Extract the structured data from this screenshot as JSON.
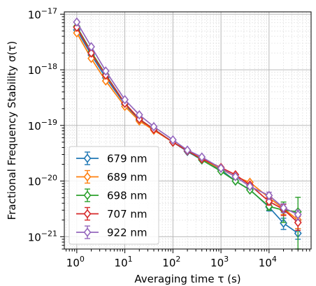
{
  "chart_data": {
    "type": "line",
    "xlabel": "Averaging time τ (s)",
    "ylabel": "Fractional Frequency Stability σ(τ)",
    "xscale": "log",
    "yscale": "log",
    "xlim": [
      0.55,
      75000
    ],
    "ylim": [
      6e-22,
      1.1e-17
    ],
    "grid": true,
    "legend_position": "lower-left",
    "marker": "open-diamond",
    "x_ticks": [
      {
        "value": 1,
        "base": "10",
        "exp": "0"
      },
      {
        "value": 10,
        "base": "10",
        "exp": "1"
      },
      {
        "value": 100,
        "base": "10",
        "exp": "2"
      },
      {
        "value": 1000,
        "base": "10",
        "exp": "3"
      },
      {
        "value": 10000,
        "base": "10",
        "exp": "4"
      }
    ],
    "y_ticks": [
      {
        "value": 1e-21,
        "base": "10",
        "exp": "−21"
      },
      {
        "value": 1e-20,
        "base": "10",
        "exp": "−20"
      },
      {
        "value": 1e-19,
        "base": "10",
        "exp": "−19"
      },
      {
        "value": 1e-18,
        "base": "10",
        "exp": "−18"
      },
      {
        "value": 1e-17,
        "base": "10",
        "exp": "−17"
      }
    ],
    "x": [
      1,
      2,
      4,
      10,
      20,
      40,
      100,
      200,
      400,
      1000,
      2000,
      4000,
      10000,
      20000,
      40000
    ],
    "series": [
      {
        "name": "679 nm",
        "color": "#1f77b4",
        "values": [
          5.2e-18,
          1.85e-18,
          7.2e-19,
          2.4e-19,
          1.25e-19,
          8.5e-20,
          5e-20,
          3.4e-20,
          2.4e-20,
          1.6e-20,
          1e-20,
          7e-21,
          3.4e-21,
          1.75e-21,
          1.15e-21
        ],
        "err": [
          0,
          0,
          0,
          0,
          0,
          0,
          0,
          0,
          0,
          0,
          0,
          0,
          5e-22,
          4e-22,
          2.5e-22
        ]
      },
      {
        "name": "689 nm",
        "color": "#ff7f0e",
        "values": [
          4.6e-18,
          1.6e-18,
          6.3e-19,
          2.2e-19,
          1.2e-19,
          8.2e-20,
          5e-20,
          3.5e-20,
          2.5e-20,
          1.65e-20,
          1.2e-20,
          9.5e-21,
          5e-21,
          3.2e-21,
          2e-21
        ],
        "err": [
          0,
          0,
          0,
          0,
          0,
          0,
          0,
          0,
          0,
          0,
          0,
          0,
          7e-22,
          7e-22,
          6e-22
        ]
      },
      {
        "name": "698 nm",
        "color": "#2ca02c",
        "values": [
          6e-18,
          2.1e-18,
          8.2e-19,
          2.5e-19,
          1.3e-19,
          8.6e-20,
          5e-20,
          3.5e-20,
          2.4e-20,
          1.5e-20,
          1e-20,
          6.9e-21,
          3.5e-21,
          3e-21,
          2.8e-21
        ],
        "err": [
          0,
          0,
          0,
          0,
          0,
          0,
          0,
          0,
          0,
          0,
          0,
          0,
          5e-22,
          1.2e-21,
          2.3e-21
        ]
      },
      {
        "name": "707 nm",
        "color": "#d62728",
        "values": [
          5.8e-18,
          2e-18,
          8e-19,
          2.5e-19,
          1.3e-19,
          8.5e-20,
          5e-20,
          3.5e-20,
          2.5e-20,
          1.75e-20,
          1.3e-20,
          8.5e-21,
          4.3e-21,
          3.1e-21,
          1.8e-21
        ],
        "err": [
          0,
          0,
          0,
          0,
          0,
          0,
          0,
          0,
          0,
          0,
          0,
          0,
          6e-22,
          7e-22,
          5e-22
        ]
      },
      {
        "name": "922 nm",
        "color": "#9467bd",
        "values": [
          7.2e-18,
          2.6e-18,
          9.5e-19,
          2.9e-19,
          1.55e-19,
          9.5e-20,
          5.5e-20,
          3.6e-20,
          2.7e-20,
          1.7e-20,
          1.2e-20,
          8e-21,
          5.5e-21,
          3.3e-21,
          2.5e-21
        ],
        "err": [
          0,
          0,
          0,
          0,
          0,
          0,
          0,
          0,
          0,
          0,
          0,
          0,
          8e-22,
          6e-22,
          5e-22
        ]
      }
    ]
  }
}
